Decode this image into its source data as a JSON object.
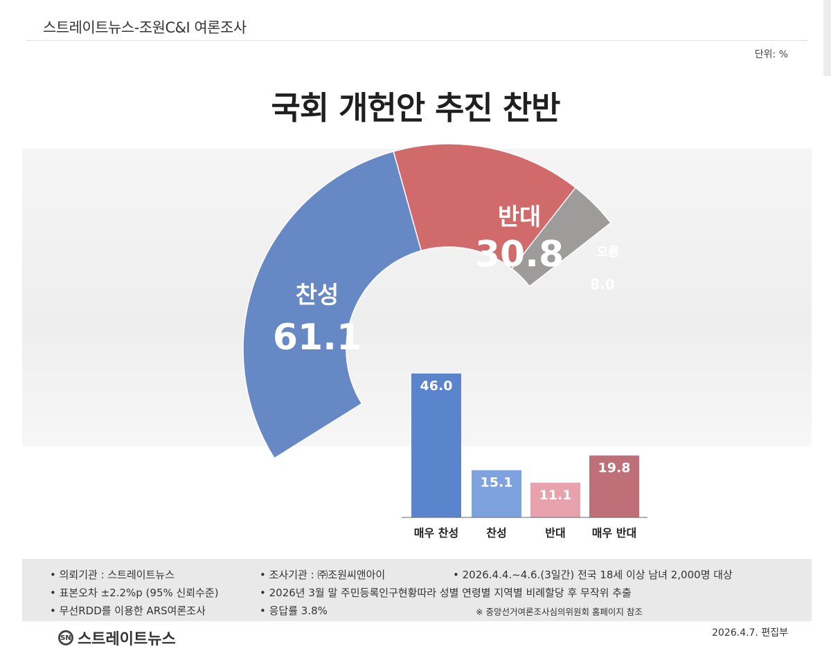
{
  "header": {
    "title": "스트레이트뉴스-조원C&I 여론조사",
    "unit": "단위: %"
  },
  "main_title": "국회 개헌안 추진 찬반",
  "colors": {
    "favor": "#6688c4",
    "oppose": "#d16a6a",
    "unknown": "#9e9b9b",
    "bar_strong_favor": "#5a84cc",
    "bar_favor": "#7ea2de",
    "bar_oppose": "#e7a2ad",
    "bar_strong_oppose": "#be6f78"
  },
  "chart_data": [
    {
      "type": "pie",
      "title": "국회 개헌안 추진 찬반",
      "style": "half-donut",
      "slices": [
        {
          "label": "찬성",
          "value": 61.1
        },
        {
          "label": "반대",
          "value": 30.8
        },
        {
          "label": "모름",
          "value": 8.0
        }
      ]
    },
    {
      "type": "bar",
      "categories": [
        "매우 찬성",
        "찬성",
        "반대",
        "매우 반대"
      ],
      "values": [
        46.0,
        15.1,
        11.1,
        19.8
      ],
      "ylim": [
        0,
        46.0
      ]
    }
  ],
  "notes": {
    "items": [
      "• 의뢰기관 : 스트레이트뉴스",
      "• 조사기관 : ㈜조원씨앤아이",
      "• 2026.4.4.~4.6.(3일간) 전국 18세 이상 남녀 2,000명 대상",
      "• 표본오차 ±2.2%p (95% 신뢰수준)",
      "• 2026년 3월 말 주민등록인구현황따라 성별 연령별 지역별 비례할당 후 무작위 추출",
      "• 무선RDD를 이용한 ARS여론조사",
      "• 응답률 3.8%"
    ],
    "footnote": "※ 중앙선거여론조사심의위원회 홈페이지 참조"
  },
  "footer": {
    "logo_text": "스트레이트뉴스",
    "logo_mark": "SN",
    "date": "2026.4.7.  편집부"
  }
}
